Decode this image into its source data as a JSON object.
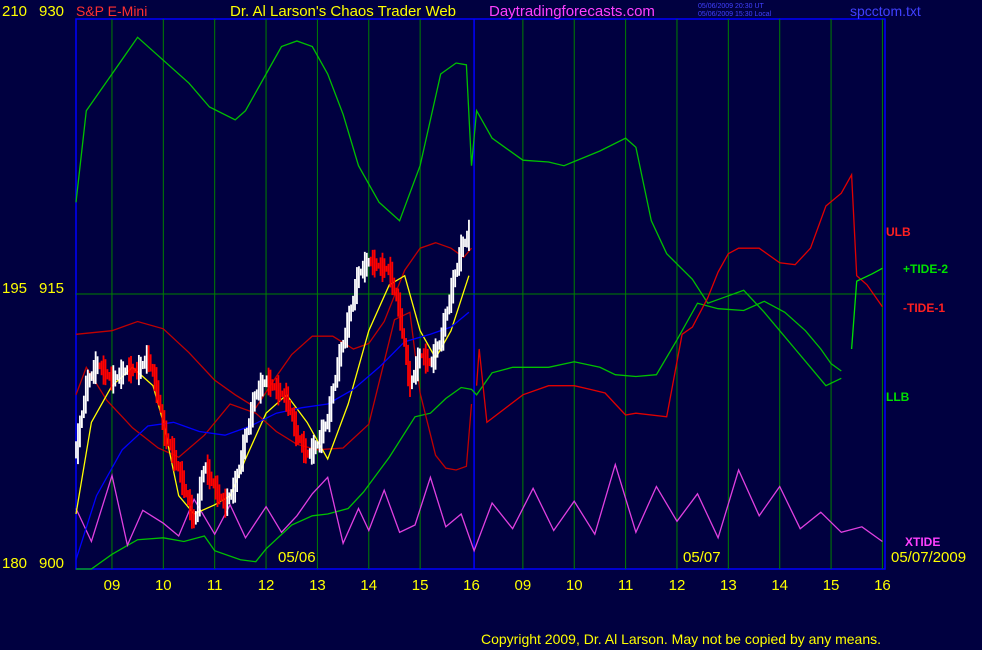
{
  "header": {
    "left_scale_top": "210",
    "right_scale_top": "930",
    "instrument": "S&P E-Mini",
    "title": "Dr. Al Larson's Chaos Trader Web",
    "site": "Daytradingforecasts.com",
    "stamp_ut": "05/06/2009 20:30 UT",
    "stamp_local": "05/06/2009 15:30 Local",
    "filename": "spcctom.txt"
  },
  "axis_labels": {
    "left_mid": "195",
    "right_mid": "915",
    "left_bottom": "180",
    "right_bottom": "900",
    "date_day1": "05/06",
    "date_day2": "05/07",
    "date_end": "05/07/2009"
  },
  "line_labels": {
    "ulb": "ULB",
    "tide2": "+TIDE-2",
    "tide1": "-TIDE-1",
    "llb": "LLB",
    "xtide": "XTIDE"
  },
  "footer": {
    "copyright": "Copyright 2009, Dr. Al Larson. May not be copied by any means."
  },
  "colors": {
    "background": "#000040",
    "grid": "#008000",
    "frame": "#0000ff",
    "price_up": "#ffffff",
    "price_down": "#ff0000",
    "envelope_outer": "#00c000",
    "envelope_inner": "#c00000",
    "tide2": "#00e000",
    "tide1": "#e00000",
    "xtide": "#e040e0",
    "ma_fast": "#ffff00",
    "ma_slow": "#0000ff"
  },
  "chart_data": {
    "type": "line",
    "y_axis": {
      "price_range": [
        900,
        930
      ],
      "alt_scale_range": [
        180,
        210
      ],
      "midline_price": 915
    },
    "x_axis": {
      "tick_labels": [
        "09",
        "10",
        "11",
        "12",
        "13",
        "14",
        "15",
        "16",
        "09",
        "10",
        "11",
        "12",
        "13",
        "14",
        "15",
        "16"
      ],
      "hour_range": [
        8.3,
        24.05
      ],
      "day_separator_hour": 16.05
    },
    "series": [
      {
        "name": "ULB",
        "color": "#00c000",
        "x": [
          8.3,
          8.5,
          9.0,
          9.5,
          9.9,
          10.5,
          10.9,
          11.4,
          11.6,
          12.0,
          12.3,
          12.6,
          12.9,
          13.2,
          13.5,
          13.8,
          14.2,
          14.6,
          15.0,
          15.4,
          15.7,
          15.9,
          16.0,
          16.1,
          16.4,
          17.0,
          17.5,
          17.8,
          18.5,
          19.0,
          19.2,
          19.5,
          19.8,
          20.3,
          20.6,
          20.9,
          21.3,
          21.7,
          22.0,
          22.3,
          22.6,
          22.9,
          23.2
        ],
        "y": [
          920,
          925,
          927,
          929,
          928,
          926.5,
          925.2,
          924.5,
          925,
          927,
          928.5,
          928.8,
          928.5,
          927,
          924.8,
          922,
          920,
          919,
          922,
          927,
          927.6,
          927.5,
          922,
          925,
          923.5,
          922.3,
          922.2,
          922,
          922.8,
          923.5,
          923,
          919,
          917.2,
          915.8,
          914.5,
          914.8,
          915.2,
          914,
          913,
          912,
          911,
          910,
          910.4
        ]
      },
      {
        "name": "LLB",
        "color": "#00c000",
        "x": [
          8.3,
          8.6,
          9.0,
          9.5,
          10.0,
          10.4,
          10.8,
          11.0,
          11.5,
          11.8,
          12.0,
          12.5,
          12.9,
          13.2,
          13.6,
          13.9,
          14.4,
          14.9,
          15.2,
          15.5,
          15.8,
          16.0,
          16.1,
          16.4,
          16.8,
          17.5,
          18.0,
          18.5,
          18.8,
          19.2,
          19.6,
          20.0,
          20.4,
          20.8,
          21.3,
          21.7,
          22.1,
          22.5,
          22.8,
          23.0,
          23.2
        ],
        "y": [
          900,
          900,
          900.8,
          901.6,
          901.7,
          901.5,
          901.8,
          901,
          900.5,
          900.4,
          901.1,
          902.4,
          902.9,
          903,
          903.3,
          904.2,
          906.1,
          908.3,
          908.5,
          909.3,
          909.9,
          909.8,
          909.5,
          910.7,
          911,
          911,
          911.3,
          911,
          910.6,
          910.5,
          910.6,
          912.5,
          914.5,
          914.2,
          914.1,
          914.6,
          914,
          913,
          912,
          911.2,
          910.8
        ]
      },
      {
        "name": "ULB inner",
        "color": "#c00000",
        "x": [
          8.3,
          9.0,
          9.5,
          10.0,
          10.5,
          11.0,
          11.4,
          11.8,
          12.2,
          12.5,
          12.9,
          13.3,
          13.7,
          14.0,
          14.3,
          14.7,
          15.0,
          15.3,
          15.6,
          15.85,
          16.0
        ],
        "y": [
          912.8,
          913,
          913.5,
          913.1,
          911.8,
          910.3,
          909.5,
          908.8,
          910.5,
          911.7,
          912.7,
          912.7,
          912,
          912.3,
          913.5,
          916.3,
          917.5,
          917.8,
          917.5,
          917,
          917.5
        ]
      },
      {
        "name": "LLB inner",
        "color": "#c00000",
        "x": [
          8.3,
          8.5,
          8.9,
          9.4,
          9.9,
          10.3,
          10.8,
          11.3,
          11.8,
          12.2,
          12.6,
          13.0,
          13.5,
          14.0,
          14.5,
          14.8,
          15.0,
          15.3,
          15.5,
          15.7,
          15.9,
          16.0
        ],
        "y": [
          909.5,
          911,
          909.2,
          907.7,
          906.6,
          906.1,
          907.3,
          909,
          908.5,
          907.5,
          906.8,
          906.5,
          906.6,
          907.9,
          913.6,
          914,
          909.6,
          906.2,
          905.5,
          905.4,
          905.6,
          909
        ]
      },
      {
        "name": "-TIDE-1",
        "color": "#e00000",
        "x": [
          16.1,
          16.15,
          16.3,
          17.0,
          17.5,
          18.0,
          18.3,
          18.6,
          18.8,
          19.0,
          19.2,
          19.8,
          20.1,
          20.3,
          20.6,
          20.8,
          21.0,
          21.2,
          21.6,
          22.0,
          22.3,
          22.6,
          22.9,
          23.2,
          23.4,
          23.5,
          23.7,
          24.0
        ],
        "y": [
          910,
          912,
          908,
          909.5,
          910,
          910,
          909.8,
          909.6,
          909,
          908.4,
          908.5,
          908.3,
          912.8,
          913.2,
          914.8,
          916.2,
          917.2,
          917.5,
          917.5,
          916.7,
          916.6,
          917.5,
          919.8,
          920.5,
          921.5,
          916,
          915.5,
          914.3
        ]
      },
      {
        "name": "+TIDE-2",
        "color": "#00e000",
        "x": [
          23.4,
          23.5,
          23.8,
          24.0
        ],
        "y": [
          912,
          915.7,
          916.1,
          916.4
        ]
      },
      {
        "name": "XTIDE",
        "color": "#e040e0",
        "x": [
          8.3,
          8.6,
          9.0,
          9.3,
          9.6,
          10.0,
          10.3,
          10.6,
          11.0,
          11.3,
          11.6,
          12.0,
          12.3,
          12.6,
          12.9,
          13.2,
          13.5,
          13.8,
          14.0,
          14.3,
          14.6,
          14.9,
          15.2,
          15.5,
          15.8,
          16.05,
          16.4,
          16.8,
          17.2,
          17.6,
          18.0,
          18.4,
          18.8,
          19.2,
          19.6,
          20.0,
          20.4,
          20.8,
          21.2,
          21.6,
          22.0,
          22.4,
          22.8,
          23.2,
          23.6,
          24.0
        ],
        "y": [
          903.3,
          901.5,
          905.1,
          901.3,
          903.2,
          902.5,
          901.8,
          903.8,
          901.9,
          903.5,
          901.7,
          903.4,
          902,
          902.9,
          904.1,
          905,
          901.4,
          903.3,
          902.1,
          904.3,
          902,
          902.4,
          905,
          902.3,
          903,
          901,
          903.6,
          902.2,
          904.4,
          902.1,
          903.7,
          901.9,
          905.7,
          902,
          904.5,
          902.6,
          904.1,
          901.7,
          905.4,
          902.9,
          904.5,
          902.2,
          903.1,
          902,
          902.3,
          901.5
        ]
      },
      {
        "name": "Price",
        "color": "#ffffff",
        "x": [
          8.3,
          8.5,
          8.7,
          9.0,
          9.3,
          9.5,
          9.7,
          9.9,
          10.0,
          10.2,
          10.4,
          10.6,
          10.8,
          11.0,
          11.2,
          11.4,
          11.6,
          11.8,
          12.0,
          12.2,
          12.4,
          12.6,
          12.8,
          13.0,
          13.2,
          13.4,
          13.6,
          13.8,
          14.0,
          14.2,
          14.4,
          14.6,
          14.8,
          15.0,
          15.2,
          15.4,
          15.6,
          15.8,
          15.95
        ],
        "y": [
          906.5,
          910,
          911.2,
          910.3,
          910.9,
          910.8,
          911.6,
          909.5,
          907.6,
          906.2,
          904.5,
          902.5,
          905.7,
          904.4,
          903.5,
          904.6,
          907.2,
          909.6,
          910.3,
          909.8,
          909.3,
          907.3,
          906.2,
          906.8,
          908.2,
          911.2,
          913.5,
          916.1,
          916.8,
          916.5,
          916.3,
          914,
          910,
          911.7,
          911.2,
          912.5,
          915.1,
          917.5,
          918.3
        ]
      },
      {
        "name": "MA fast",
        "color": "#ffff00",
        "x": [
          8.3,
          8.6,
          9.0,
          9.4,
          9.8,
          10.0,
          10.3,
          10.6,
          11.0,
          11.3,
          11.6,
          12.0,
          12.4,
          12.8,
          13.2,
          13.6,
          14.0,
          14.4,
          14.7,
          15.0,
          15.3,
          15.6,
          15.95
        ],
        "y": [
          903,
          908,
          910,
          911,
          910,
          908,
          904,
          903,
          903.5,
          904,
          906,
          908.5,
          909.5,
          908,
          906,
          909,
          913,
          915.5,
          916,
          913,
          911.5,
          913,
          916
        ]
      },
      {
        "name": "MA slow",
        "color": "#0000ff",
        "x": [
          8.3,
          8.7,
          9.2,
          9.7,
          10.2,
          10.7,
          11.2,
          11.7,
          12.2,
          12.7,
          13.2,
          13.7,
          14.2,
          14.7,
          15.2,
          15.6,
          15.95
        ],
        "y": [
          900.5,
          904,
          906.5,
          907.8,
          908,
          907.5,
          907.3,
          907.8,
          908.5,
          908.8,
          909,
          909.8,
          911,
          912.4,
          912.8,
          913.2,
          914
        ]
      }
    ]
  }
}
